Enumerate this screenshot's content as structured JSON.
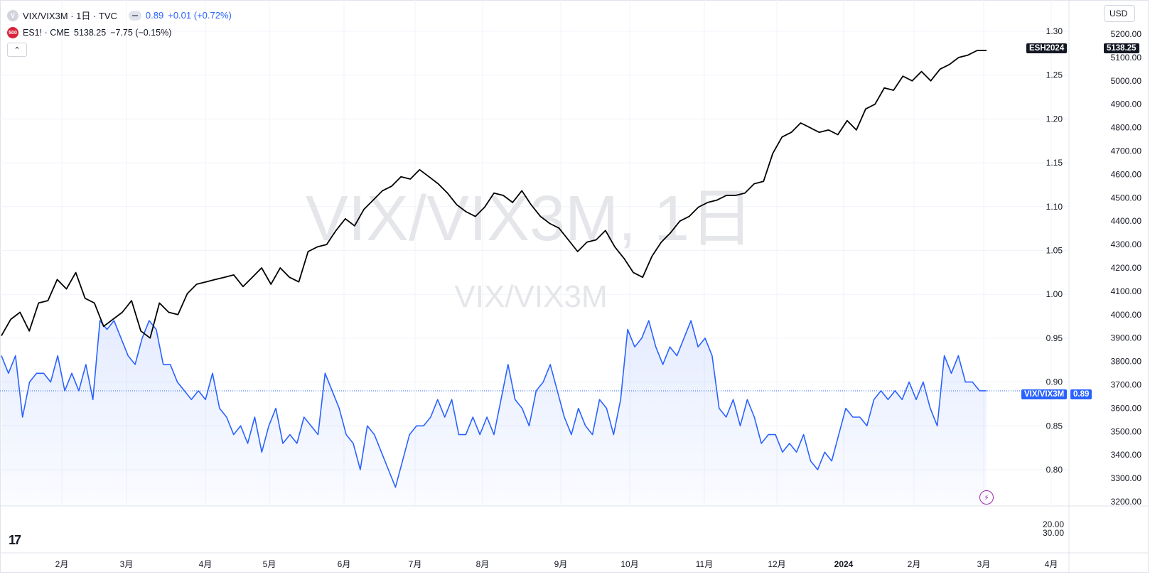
{
  "legend": {
    "main_symbol": "VIX/VIX3M · 1日 · TVC",
    "main_badge": "V",
    "main_value": "0.89",
    "main_change": "+0.01 (+0.72%)",
    "compare_badge": "500",
    "compare_symbol": "ES1! · CME",
    "compare_value": "5138.25",
    "compare_change": "−7.75 (−0.15%)"
  },
  "currency_label": "USD",
  "collapse_label": "⌃",
  "watermark": {
    "big": "VIX/VIX3M, 1日",
    "small": "VIX/VIX3M"
  },
  "tags": {
    "es_name": "ESH2024",
    "es_price": "5138.25",
    "vix_name": "VIX/VIX3M",
    "vix_price": "0.89"
  },
  "logo_text": "17",
  "colors": {
    "vix_line": "#2962ff",
    "es_line": "#000000",
    "grid": "#f0f3fa"
  },
  "chart_data": {
    "type": "line",
    "x_ticks": [
      "2月",
      "3月",
      "4月",
      "5月",
      "6月",
      "7月",
      "8月",
      "9月",
      "10月",
      "11月",
      "12月",
      "2024",
      "2月",
      "3月",
      "4月"
    ],
    "left_axis_ticks": [
      "1.30",
      "1.25",
      "1.20",
      "1.15",
      "1.10",
      "1.05",
      "1.00",
      "0.95",
      "0.90",
      "0.85",
      "0.80"
    ],
    "right_axis_ticks": [
      "5200.00",
      "5100.00",
      "5000.00",
      "4900.00",
      "4800.00",
      "4700.00",
      "4600.00",
      "4500.00",
      "4400.00",
      "4300.00",
      "4200.00",
      "4100.00",
      "4000.00",
      "3900.00",
      "3800.00",
      "3700.00",
      "3600.00",
      "3500.00",
      "3400.00",
      "3300.00",
      "3200.00"
    ],
    "lower_pane_ticks": [
      "20.00",
      "30.00"
    ],
    "ylim_left": [
      0.76,
      1.3
    ],
    "ylim_right": [
      3200,
      5200
    ],
    "grid": true,
    "series": [
      {
        "name": "VIX/VIX3M",
        "axis": "left",
        "values": [
          0.93,
          0.91,
          0.93,
          0.86,
          0.9,
          0.91,
          0.91,
          0.9,
          0.93,
          0.89,
          0.91,
          0.89,
          0.92,
          0.88,
          0.97,
          0.96,
          0.97,
          0.95,
          0.93,
          0.92,
          0.95,
          0.97,
          0.96,
          0.92,
          0.92,
          0.9,
          0.89,
          0.88,
          0.89,
          0.88,
          0.91,
          0.87,
          0.86,
          0.84,
          0.85,
          0.83,
          0.86,
          0.82,
          0.85,
          0.87,
          0.83,
          0.84,
          0.83,
          0.86,
          0.85,
          0.84,
          0.91,
          0.89,
          0.87,
          0.84,
          0.83,
          0.8,
          0.85,
          0.84,
          0.82,
          0.8,
          0.78,
          0.81,
          0.84,
          0.85,
          0.85,
          0.86,
          0.88,
          0.86,
          0.88,
          0.84,
          0.84,
          0.86,
          0.84,
          0.86,
          0.84,
          0.88,
          0.92,
          0.88,
          0.87,
          0.85,
          0.89,
          0.9,
          0.92,
          0.89,
          0.86,
          0.84,
          0.87,
          0.85,
          0.84,
          0.88,
          0.87,
          0.84,
          0.88,
          0.96,
          0.94,
          0.95,
          0.97,
          0.94,
          0.92,
          0.94,
          0.93,
          0.95,
          0.97,
          0.94,
          0.95,
          0.93,
          0.87,
          0.86,
          0.88,
          0.85,
          0.88,
          0.86,
          0.83,
          0.84,
          0.84,
          0.82,
          0.83,
          0.82,
          0.84,
          0.81,
          0.8,
          0.82,
          0.81,
          0.84,
          0.87,
          0.86,
          0.86,
          0.85,
          0.88,
          0.89,
          0.88,
          0.89,
          0.88,
          0.9,
          0.88,
          0.9,
          0.87,
          0.85,
          0.93,
          0.91,
          0.93,
          0.9,
          0.9,
          0.89,
          0.89
        ]
      },
      {
        "name": "ESH2024",
        "axis": "right",
        "values": [
          3910,
          3980,
          4010,
          3930,
          4050,
          4060,
          4150,
          4110,
          4180,
          4070,
          4050,
          3950,
          3980,
          4010,
          4060,
          3930,
          3900,
          4050,
          4010,
          4000,
          4090,
          4130,
          4140,
          4150,
          4160,
          4170,
          4120,
          4160,
          4200,
          4130,
          4200,
          4160,
          4140,
          4270,
          4290,
          4300,
          4360,
          4410,
          4380,
          4450,
          4490,
          4530,
          4550,
          4590,
          4580,
          4620,
          4590,
          4560,
          4520,
          4470,
          4440,
          4420,
          4460,
          4520,
          4510,
          4480,
          4530,
          4470,
          4420,
          4390,
          4370,
          4320,
          4270,
          4310,
          4320,
          4360,
          4290,
          4240,
          4180,
          4160,
          4250,
          4310,
          4350,
          4400,
          4420,
          4460,
          4480,
          4490,
          4510,
          4510,
          4520,
          4560,
          4570,
          4690,
          4760,
          4780,
          4820,
          4800,
          4780,
          4790,
          4770,
          4830,
          4790,
          4880,
          4900,
          4970,
          4960,
          5020,
          5000,
          5040,
          5000,
          5050,
          5070,
          5100,
          5110,
          5130,
          5130
        ]
      }
    ]
  }
}
